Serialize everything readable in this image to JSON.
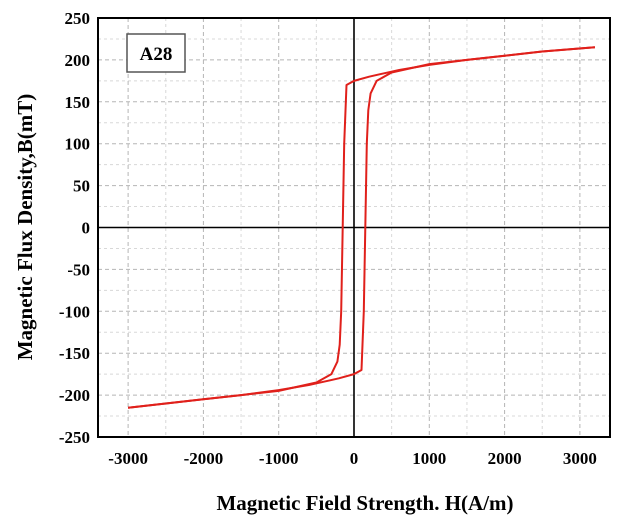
{
  "chart_data": {
    "type": "line",
    "badge": "A28",
    "xlabel": "Magnetic Field Strength. H(A/m)",
    "ylabel": "Magnetic Flux Density,B(mT)",
    "xlim": [
      -3400,
      3400
    ],
    "ylim": [
      -250,
      250
    ],
    "xticks": [
      -3000,
      -2000,
      -1000,
      0,
      1000,
      2000,
      3000
    ],
    "yticks": [
      250,
      200,
      150,
      100,
      50,
      0,
      -50,
      -100,
      -150,
      -200,
      -250
    ],
    "grid": true,
    "minor_grid": true,
    "line_color": "#e0201b",
    "series": [
      {
        "x": [
          3200,
          2500,
          2000,
          1500,
          1000,
          600,
          400,
          200,
          0,
          -100,
          -130,
          -150,
          -170,
          -190,
          -220,
          -300,
          -500,
          -1000,
          -1500,
          -2000,
          -3000
        ],
        "values": [
          215,
          210,
          205,
          200,
          194,
          188,
          184,
          180,
          175,
          170,
          100,
          0,
          -100,
          -140,
          -160,
          -175,
          -185,
          -195,
          -200,
          -205,
          -215
        ]
      },
      {
        "x": [
          -3000,
          -2000,
          -1500,
          -1000,
          -600,
          -400,
          -200,
          0,
          100,
          130,
          150,
          170,
          190,
          220,
          300,
          500,
          1000,
          1500,
          2000,
          2500,
          3200
        ],
        "values": [
          -215,
          -205,
          -200,
          -194,
          -188,
          -184,
          -180,
          -175,
          -170,
          -100,
          0,
          100,
          140,
          160,
          175,
          185,
          195,
          200,
          205,
          210,
          215
        ]
      }
    ]
  }
}
